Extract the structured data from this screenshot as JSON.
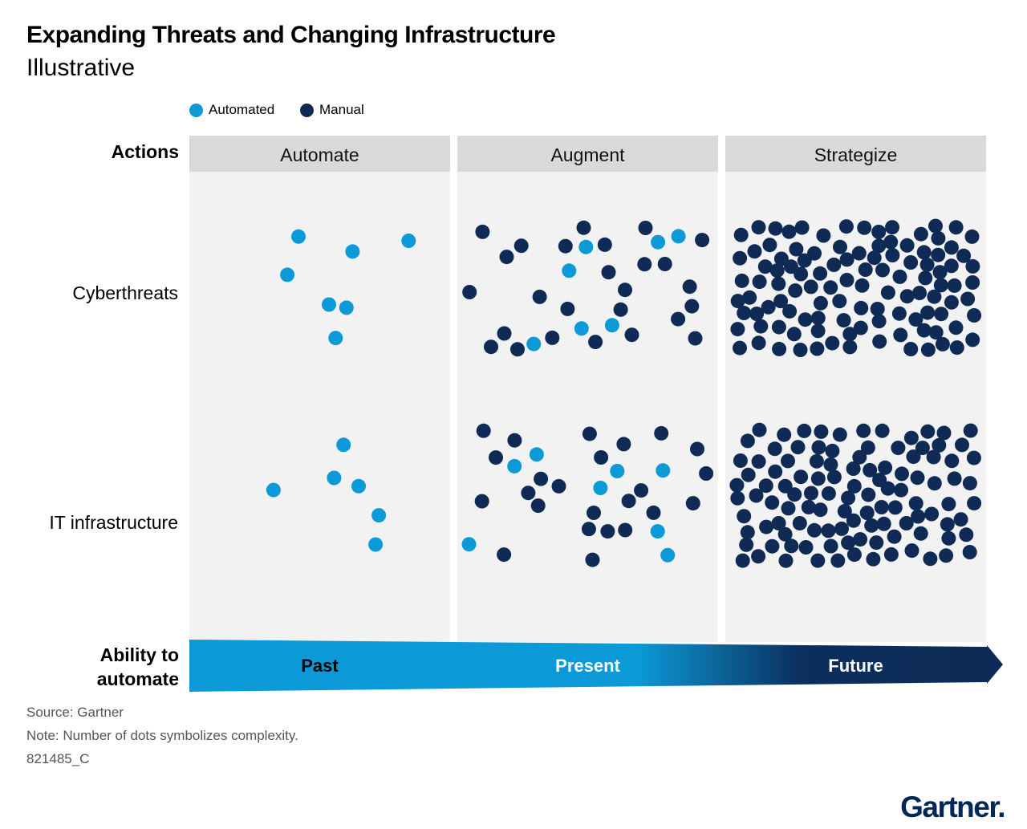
{
  "header": {
    "title": "Expanding Threats and Changing Infrastructure",
    "subtitle": "Illustrative"
  },
  "colors": {
    "automated": "#0b9ad7",
    "manual": "#0e2a55",
    "panel_bg": "#f2f2f2",
    "panel_header_bg": "#d9d9d9"
  },
  "chart_data": {
    "type": "scatter",
    "title": "Expanding Threats and Changing Infrastructure",
    "subtitle": "Illustrative",
    "legend": [
      {
        "name": "Automated",
        "color": "#0b9ad7"
      },
      {
        "name": "Manual",
        "color": "#0e2a55"
      }
    ],
    "legend_position": "top-left",
    "actions_label": "Actions",
    "actions": [
      "Automate",
      "Augment",
      "Strategize"
    ],
    "rows": [
      "Cyberthreats",
      "IT infrastructure"
    ],
    "axis_label": "Ability to automate",
    "axis_label_lines": [
      "Ability to",
      "automate"
    ],
    "eras": [
      "Past",
      "Present",
      "Future"
    ],
    "series": [
      {
        "name": "Automated",
        "counts": [
          {
            "row": "Cyberthreats",
            "column": "Automate",
            "value": 7
          },
          {
            "row": "Cyberthreats",
            "column": "Augment",
            "value": 7
          },
          {
            "row": "Cyberthreats",
            "column": "Strategize",
            "value": 0
          },
          {
            "row": "IT infrastructure",
            "column": "Automate",
            "value": 6
          },
          {
            "row": "IT infrastructure",
            "column": "Augment",
            "value": 8
          },
          {
            "row": "IT infrastructure",
            "column": "Strategize",
            "value": 0
          }
        ]
      },
      {
        "name": "Manual",
        "counts": [
          {
            "row": "Cyberthreats",
            "column": "Automate",
            "value": 0
          },
          {
            "row": "Cyberthreats",
            "column": "Augment",
            "value": 26
          },
          {
            "row": "Cyberthreats",
            "column": "Strategize",
            "value": 110
          },
          {
            "row": "IT infrastructure",
            "column": "Automate",
            "value": 0
          },
          {
            "row": "IT infrastructure",
            "column": "Augment",
            "value": 24
          },
          {
            "row": "IT infrastructure",
            "column": "Strategize",
            "value": 110
          }
        ]
      }
    ],
    "note": "Number of dots symbolizes complexity."
  },
  "footer": {
    "source": "Source: Gartner",
    "note": "Note: Number of dots symbolizes complexity.",
    "id": "821485_C",
    "brand": "Gartner."
  }
}
